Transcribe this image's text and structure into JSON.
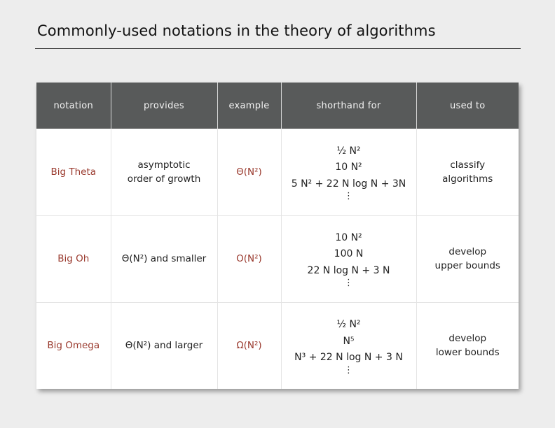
{
  "slide": {
    "title": "Commonly-used notations in the theory of algorithms"
  },
  "table": {
    "headers": [
      "notation",
      "provides",
      "example",
      "shorthand for",
      "used to"
    ],
    "rows": [
      {
        "notation": "Big Theta",
        "provides_lines": [
          "asymptotic",
          "order of growth"
        ],
        "example": "Θ(N²)",
        "shorthand": [
          "½ N²",
          "10 N²",
          "5 N² + 22 N log N + 3N",
          "⋮"
        ],
        "used_to_lines": [
          "classify",
          "algorithms"
        ]
      },
      {
        "notation": "Big Oh",
        "provides_lines": [
          "Θ(N²) and smaller"
        ],
        "example": "O(N²)",
        "shorthand": [
          "10 N²",
          "100 N",
          "22 N log N + 3 N",
          "⋮"
        ],
        "used_to_lines": [
          "develop",
          "upper bounds"
        ]
      },
      {
        "notation": "Big Omega",
        "provides_lines": [
          "Θ(N²) and larger"
        ],
        "example": "Ω(N²)",
        "shorthand": [
          "½ N²",
          "N⁵",
          "N³ + 22 N log N + 3 N",
          "⋮"
        ],
        "used_to_lines": [
          "develop",
          "lower bounds"
        ]
      }
    ]
  },
  "colors": {
    "header_bg": "#585a5a",
    "notation_text": "#9a3a2e"
  }
}
